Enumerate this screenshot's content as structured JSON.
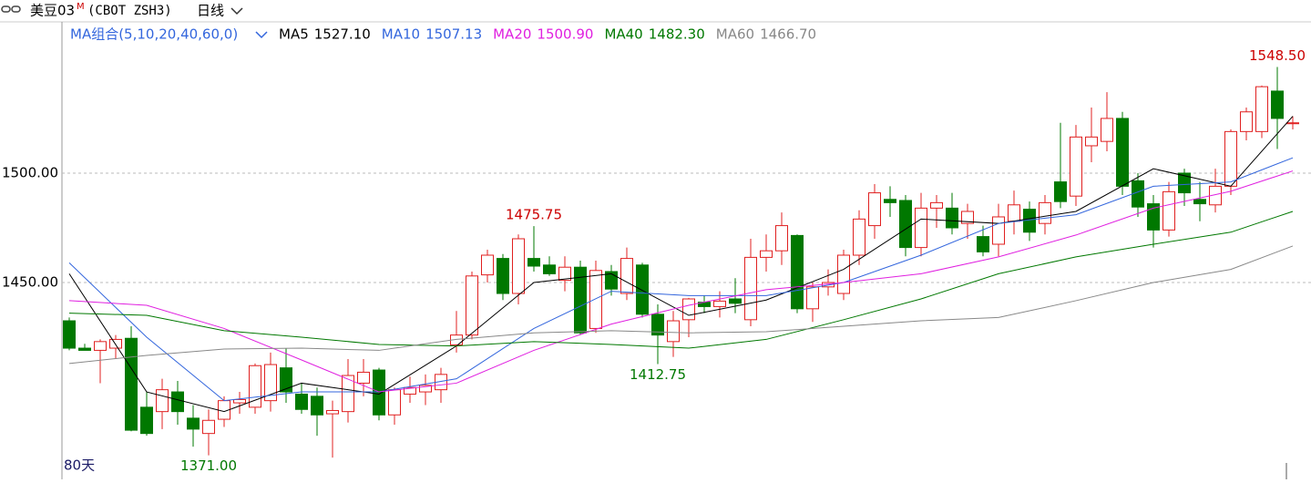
{
  "chart_data": {
    "type": "candlestick",
    "title": "美豆03",
    "title_sup": "M",
    "symbol": "(CBOT ZSH3)",
    "period": "日线",
    "ma_group": "MA组合(5,10,20,40,60,0)",
    "period_count": "80天",
    "up_color": "#e02020",
    "down_color": "#007800",
    "ylim": [
      1361.7,
      1558.3
    ],
    "yticks": [
      {
        "value": 1500,
        "label": "1500.00"
      },
      {
        "value": 1450,
        "label": "1450.00"
      }
    ],
    "grid": true,
    "open": [
      1432.5,
      1420,
      1419,
      1420,
      1424.5,
      1393,
      1391,
      1400,
      1388,
      1381,
      1387.5,
      1395,
      1393,
      1396,
      1411,
      1399,
      1398,
      1390,
      1391,
      1404,
      1410,
      1389.5,
      1399,
      1400,
      1401,
      1421.5,
      1426,
      1453.5,
      1461,
      1445,
      1461,
      1458,
      1451,
      1457,
      1429,
      1455,
      1445,
      1458,
      1435.5,
      1423,
      1433,
      1441,
      1439,
      1442.5,
      1433,
      1461.5,
      1464.5,
      1471.5,
      1438,
      1448,
      1445,
      1462.5,
      1476,
      1488,
      1487.5,
      1466,
      1484,
      1484,
      1477,
      1471,
      1467.5,
      1478,
      1483.5,
      1477,
      1496,
      1489.5,
      1512.5,
      1514.5,
      1525,
      1496.5,
      1486,
      1474,
      1500,
      1488,
      1485.5,
      1494,
      1519,
      1519,
      1537.5,
      1523
    ],
    "high": [
      1434,
      1422,
      1424,
      1426,
      1430,
      1400,
      1406,
      1405,
      1394,
      1392,
      1398,
      1400,
      1413,
      1418,
      1420,
      1404,
      1402,
      1396,
      1415,
      1415,
      1411,
      1402,
      1407,
      1408,
      1411,
      1437,
      1455,
      1465,
      1463,
      1472,
      1475.75,
      1462,
      1462,
      1460,
      1460,
      1458,
      1466,
      1459,
      1440,
      1437,
      1443,
      1444,
      1446,
      1452,
      1470,
      1472,
      1482,
      1472,
      1450,
      1456,
      1465,
      1483,
      1495,
      1494,
      1490,
      1491,
      1490,
      1491,
      1486,
      1476,
      1486,
      1492,
      1487,
      1490,
      1523,
      1522,
      1530,
      1537,
      1528,
      1500,
      1490,
      1496,
      1502,
      1496,
      1502,
      1520,
      1530,
      1540,
      1548.5,
      1526
    ],
    "low": [
      1419,
      1419,
      1404,
      1415,
      1382,
      1380,
      1383,
      1385,
      1375,
      1371,
      1384,
      1390,
      1390,
      1391,
      1395,
      1390,
      1380,
      1370,
      1386,
      1398,
      1387,
      1385,
      1395,
      1394,
      1395,
      1418,
      1424,
      1450,
      1442,
      1440,
      1455,
      1453,
      1446,
      1426,
      1427,
      1444,
      1442,
      1434,
      1412.75,
      1416,
      1425,
      1436,
      1434,
      1436,
      1430,
      1455,
      1458,
      1436,
      1432,
      1444,
      1442,
      1458,
      1470,
      1480,
      1462,
      1462,
      1475,
      1472,
      1470,
      1462,
      1462,
      1472,
      1469,
      1472,
      1484,
      1485,
      1505,
      1510,
      1490,
      1480,
      1466,
      1471,
      1485,
      1478,
      1482,
      1490,
      1515,
      1516,
      1511,
      1520
    ],
    "close": [
      1420,
      1419,
      1423,
      1424,
      1382.5,
      1381,
      1401,
      1391,
      1383,
      1387,
      1396,
      1396.5,
      1412,
      1412.5,
      1400,
      1392,
      1389.5,
      1391.5,
      1407.5,
      1409,
      1389.5,
      1401,
      1402,
      1403,
      1408,
      1426,
      1453,
      1462.5,
      1445,
      1470,
      1457.5,
      1454,
      1457,
      1427,
      1455.5,
      1447,
      1461,
      1435.5,
      1426,
      1432.5,
      1442.5,
      1439,
      1441.5,
      1440.5,
      1461.5,
      1464.5,
      1476,
      1438,
      1448,
      1450,
      1462.5,
      1479,
      1491,
      1486.5,
      1466,
      1484,
      1486.5,
      1475,
      1482.5,
      1464,
      1480,
      1485.5,
      1473,
      1486.5,
      1487,
      1516.5,
      1516.5,
      1525,
      1494,
      1484.5,
      1474,
      1491.5,
      1491,
      1486,
      1494,
      1519,
      1528,
      1539.5,
      1525,
      1523
    ],
    "series": [
      {
        "name": "MA5",
        "color": "#000000",
        "legend_value": {
          "value": 1527.1,
          "label": "1527.10"
        },
        "x": [
          0,
          5,
          10,
          15,
          20,
          25,
          30,
          35,
          40,
          45,
          50,
          55,
          60,
          65,
          70,
          75,
          79
        ],
        "values": [
          1454,
          1400,
          1391,
          1404,
          1399,
          1421,
          1450,
          1454,
          1435,
          1442,
          1456,
          1479,
          1477,
          1482.5,
          1502,
          1494,
          1526
        ]
      },
      {
        "name": "MA10",
        "color": "#3366dd",
        "legend_value": {
          "value": 1507.13,
          "label": "1507.13"
        },
        "x": [
          0,
          5,
          10,
          15,
          20,
          25,
          30,
          35,
          40,
          45,
          50,
          55,
          60,
          65,
          70,
          75,
          79
        ],
        "values": [
          1459,
          1425,
          1396,
          1400,
          1400,
          1406,
          1429,
          1446,
          1444,
          1444,
          1450,
          1462.5,
          1477,
          1481,
          1494,
          1496,
          1507
        ]
      },
      {
        "name": "MA20",
        "color": "#e020e0",
        "legend_value": {
          "value": 1500.9,
          "label": "1500.90"
        },
        "x": [
          0,
          5,
          10,
          15,
          20,
          25,
          30,
          35,
          40,
          45,
          50,
          55,
          60,
          65,
          70,
          75,
          79
        ],
        "values": [
          1441.7,
          1439.6,
          1429,
          1414.6,
          1400,
          1404,
          1419,
          1431,
          1439.6,
          1446.7,
          1450,
          1454,
          1461.7,
          1471.7,
          1484,
          1491.7,
          1501
        ]
      },
      {
        "name": "MA40",
        "color": "#007800",
        "legend_value": {
          "value": 1482.3,
          "label": "1482.30"
        },
        "x": [
          0,
          5,
          10,
          15,
          20,
          25,
          30,
          35,
          40,
          45,
          50,
          55,
          60,
          65,
          70,
          75,
          79
        ],
        "values": [
          1436,
          1435,
          1428,
          1425,
          1421.7,
          1421,
          1423,
          1421.7,
          1420,
          1424,
          1433,
          1442.5,
          1454,
          1461.7,
          1467.5,
          1473,
          1482.5
        ]
      },
      {
        "name": "MA60",
        "color": "#888888",
        "legend_value": {
          "value": 1466.7,
          "label": "1466.70"
        },
        "x": [
          0,
          5,
          10,
          15,
          20,
          25,
          30,
          35,
          40,
          45,
          50,
          55,
          60,
          65,
          70,
          75,
          79
        ],
        "values": [
          1413,
          1416.7,
          1419.6,
          1420,
          1419,
          1424,
          1427,
          1428,
          1427,
          1427.5,
          1430,
          1432.5,
          1434,
          1441.7,
          1450,
          1456,
          1466.7
        ]
      }
    ],
    "annotations": [
      {
        "index": 78,
        "value": 1548.5,
        "label": "1548.50",
        "color": "#cc0000",
        "side": "high"
      },
      {
        "index": 30,
        "value": 1475.75,
        "label": "1475.75",
        "color": "#cc0000",
        "side": "high"
      },
      {
        "index": 38,
        "value": 1412.75,
        "label": "1412.75",
        "color": "#007800",
        "side": "low"
      },
      {
        "index": 9,
        "value": 1371,
        "label": "1371.00",
        "color": "#007800",
        "side": "low"
      }
    ]
  }
}
